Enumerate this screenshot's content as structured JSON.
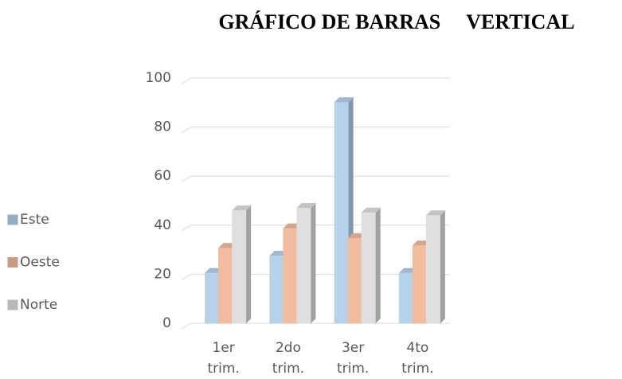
{
  "chart_data": {
    "type": "bar",
    "title": "GRÁFICO DE BARRAS     VERTICAL",
    "categories": [
      "1er trim.",
      "2do trim.",
      "3er trim.",
      "4to trim."
    ],
    "series": [
      {
        "name": "Este",
        "color": "#bcd8f2",
        "values": [
          20.4,
          27.4,
          90,
          20.4
        ]
      },
      {
        "name": "Oeste",
        "color": "#f9c3a4",
        "values": [
          30.6,
          38.6,
          34.6,
          31.6
        ]
      },
      {
        "name": "Norte",
        "color": "#e6e6e6",
        "values": [
          45.9,
          46.9,
          45,
          43.9
        ]
      }
    ],
    "ylim": [
      0,
      100
    ],
    "yticks": [
      0,
      20,
      40,
      60,
      80,
      100
    ],
    "grid": true,
    "legend": "left"
  }
}
